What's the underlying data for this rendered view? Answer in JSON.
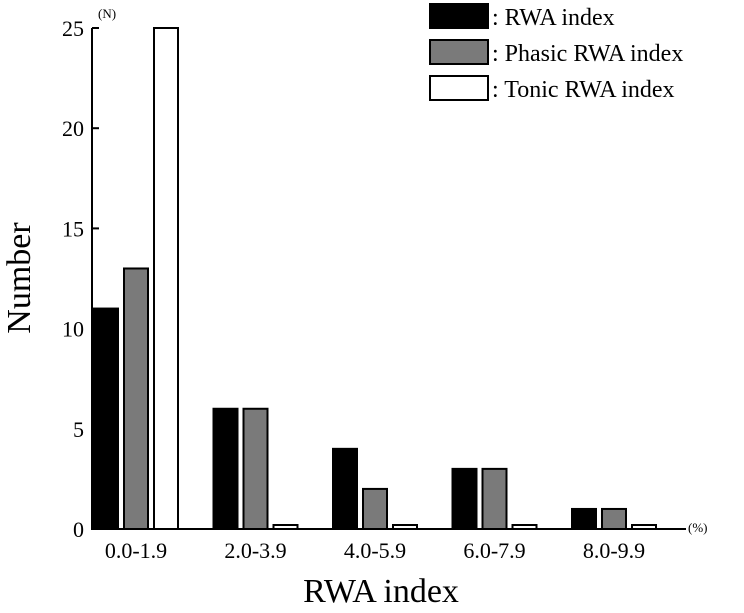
{
  "chart_data": {
    "type": "bar",
    "xlabel": "RWA index",
    "ylabel": "Number",
    "y_unit": "(N)",
    "x_unit": "(%)",
    "ylim": [
      0,
      25
    ],
    "yticks": [
      0,
      5,
      10,
      15,
      20,
      25
    ],
    "categories": [
      "0.0-1.9",
      "2.0-3.9",
      "4.0-5.9",
      "6.0-7.9",
      "8.0-9.9"
    ],
    "series": [
      {
        "name": ": RWA index",
        "color": "#000000",
        "values": [
          11,
          6,
          4,
          3,
          1
        ]
      },
      {
        "name": ": Phasic RWA index",
        "color": "#7a7a7a",
        "values": [
          13,
          6,
          2,
          3,
          1
        ]
      },
      {
        "name": ": Tonic RWA index",
        "color": "#ffffff",
        "values": [
          25,
          0.1,
          0.1,
          0.1,
          0.1
        ]
      }
    ],
    "legend_position": "top-right"
  }
}
